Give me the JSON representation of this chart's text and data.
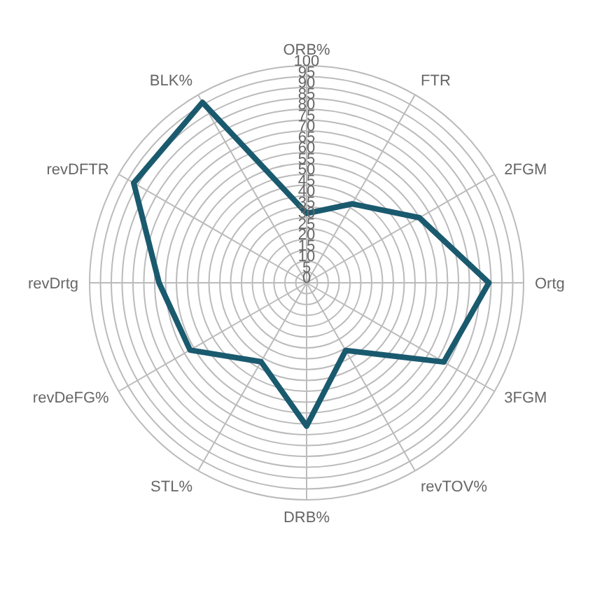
{
  "chart_data": {
    "type": "radar",
    "categories": [
      "ORB%",
      "FTR",
      "2FGM",
      "Ortg",
      "3FGM",
      "revTOV%",
      "DRB%",
      "STL%",
      "revDeFG%",
      "revDrtg",
      "revDFTR",
      "BLK%"
    ],
    "series": [
      {
        "color": "#1a5a6e",
        "values": [
          32,
          42,
          60,
          84,
          73,
          36,
          66,
          42,
          62,
          68,
          92,
          96
        ]
      }
    ],
    "ylim": [
      0,
      100
    ],
    "yticks": [
      0,
      5,
      10,
      15,
      20,
      25,
      30,
      35,
      40,
      45,
      50,
      55,
      60,
      65,
      70,
      75,
      80,
      85,
      90,
      95,
      100
    ],
    "grid": true,
    "legend": false,
    "marker": "none"
  }
}
